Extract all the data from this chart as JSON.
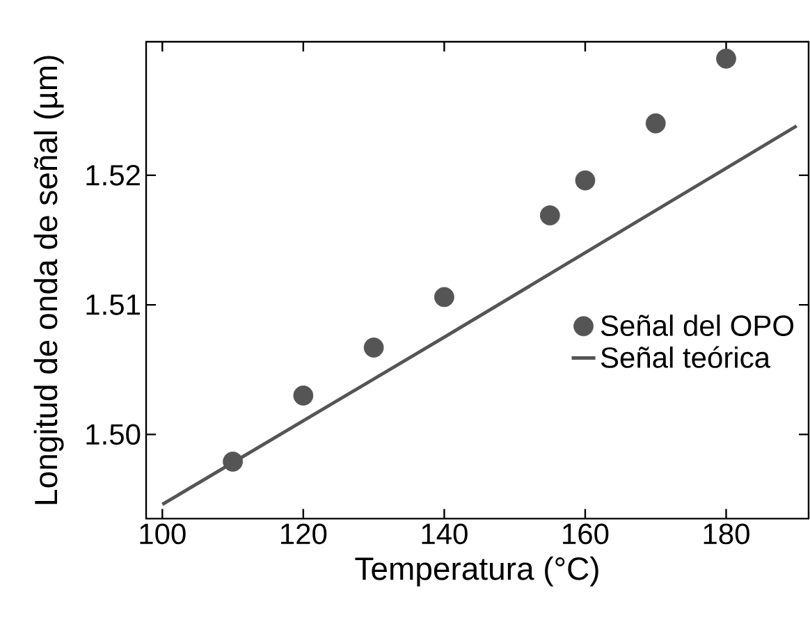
{
  "chart_data": {
    "type": "scatter",
    "xlabel": "Temperatura (°C)",
    "ylabel": "Longitud de onda de señal (µm)",
    "xlim": [
      97.7,
      191.7
    ],
    "ylim": [
      1.4935,
      1.5303
    ],
    "xticks": [
      100,
      120,
      140,
      160,
      180
    ],
    "yticks": [
      {
        "value": 1.5,
        "label": "1.50"
      },
      1.51,
      1.52
    ],
    "legend": "right",
    "grid": false,
    "series": [
      {
        "name": "Señal del OPO",
        "color": "#555555",
        "x": [
          110,
          120,
          130,
          140,
          155,
          160,
          170,
          180
        ],
        "values": [
          1.4979,
          1.503,
          1.5067,
          1.5106,
          1.5169,
          1.5196,
          1.524,
          1.529
        ]
      },
      {
        "name": "Señal teórica",
        "type": "line",
        "line_style": "solid",
        "color": "#555555",
        "x": [
          100,
          140,
          190
        ],
        "values": [
          1.4946,
          1.5075,
          1.5238
        ]
      }
    ]
  }
}
